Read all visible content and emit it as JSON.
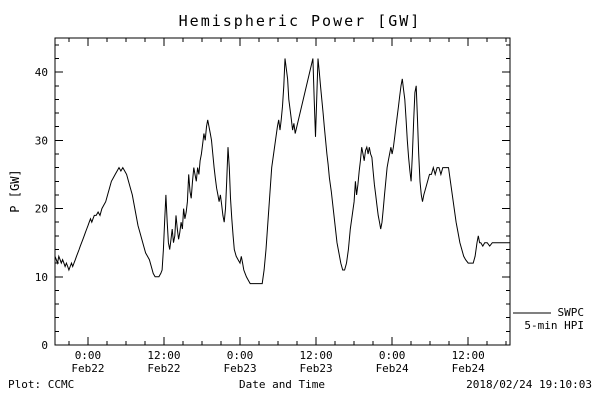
{
  "footer": {
    "left": "Plot: CCMC",
    "right": "2018/02/24 19:10:03"
  },
  "legend": {
    "line1": "SWPC",
    "line2": "5-min HPI"
  },
  "chart_data": {
    "type": "line",
    "title": "Hemispheric Power [GW]",
    "xlabel": "Date and Time",
    "ylabel": "P [GW]",
    "xlim": [
      -5.2,
      66.6
    ],
    "ylim": [
      0,
      45
    ],
    "grid": false,
    "legend_position": "right-outside",
    "line_color": "#000000",
    "y_ticks": [
      0,
      10,
      20,
      30,
      40
    ],
    "y_minor_step": 2,
    "x_minor_step": 3,
    "x_major_ticks": [
      {
        "t": 0,
        "time": "0:00",
        "date": "Feb22"
      },
      {
        "t": 12,
        "time": "12:00",
        "date": "Feb22"
      },
      {
        "t": 24,
        "time": "0:00",
        "date": "Feb23"
      },
      {
        "t": 36,
        "time": "12:00",
        "date": "Feb23"
      },
      {
        "t": 48,
        "time": "0:00",
        "date": "Feb24"
      },
      {
        "t": 60,
        "time": "12:00",
        "date": "Feb24"
      }
    ],
    "series": [
      {
        "name": "SWPC 5-min HPI",
        "color": "#000000",
        "points": [
          [
            -5.2,
            13
          ],
          [
            -5,
            12.5
          ],
          [
            -4.8,
            12
          ],
          [
            -4.6,
            13
          ],
          [
            -4.4,
            12.5
          ],
          [
            -4.2,
            12
          ],
          [
            -4,
            12.5
          ],
          [
            -3.8,
            12
          ],
          [
            -3.6,
            11.5
          ],
          [
            -3.4,
            12
          ],
          [
            -3.2,
            11.5
          ],
          [
            -3,
            11
          ],
          [
            -2.8,
            11.5
          ],
          [
            -2.6,
            12
          ],
          [
            -2.4,
            11.5
          ],
          [
            -2.2,
            12
          ],
          [
            -2,
            12.5
          ],
          [
            -1.8,
            13
          ],
          [
            -1.6,
            13.5
          ],
          [
            -1.4,
            14
          ],
          [
            -1.2,
            14.5
          ],
          [
            -1,
            15
          ],
          [
            -0.8,
            15.5
          ],
          [
            -0.6,
            16
          ],
          [
            -0.4,
            16.5
          ],
          [
            -0.2,
            17
          ],
          [
            0,
            17.5
          ],
          [
            0.2,
            18
          ],
          [
            0.4,
            18.5
          ],
          [
            0.6,
            18
          ],
          [
            0.8,
            18.5
          ],
          [
            1,
            19
          ],
          [
            1.3,
            19
          ],
          [
            1.6,
            19.5
          ],
          [
            1.9,
            19
          ],
          [
            2.2,
            20
          ],
          [
            2.5,
            20.5
          ],
          [
            2.8,
            21
          ],
          [
            3.1,
            22
          ],
          [
            3.4,
            23
          ],
          [
            3.7,
            24
          ],
          [
            4,
            24.5
          ],
          [
            4.3,
            25
          ],
          [
            4.6,
            25.5
          ],
          [
            4.9,
            26
          ],
          [
            5.2,
            25.5
          ],
          [
            5.5,
            26
          ],
          [
            5.8,
            25.5
          ],
          [
            6.1,
            25
          ],
          [
            6.4,
            24
          ],
          [
            6.7,
            23
          ],
          [
            7,
            22
          ],
          [
            7.3,
            20.5
          ],
          [
            7.6,
            19
          ],
          [
            7.9,
            17.5
          ],
          [
            8.2,
            16.5
          ],
          [
            8.5,
            15.5
          ],
          [
            8.8,
            14.5
          ],
          [
            9.1,
            13.5
          ],
          [
            9.4,
            13
          ],
          [
            9.7,
            12.5
          ],
          [
            10,
            11.5
          ],
          [
            10.3,
            10.5
          ],
          [
            10.6,
            10
          ],
          [
            10.9,
            10
          ],
          [
            11.2,
            10
          ],
          [
            11.5,
            10.5
          ],
          [
            11.7,
            11
          ],
          [
            11.9,
            14
          ],
          [
            12.1,
            18
          ],
          [
            12.3,
            22
          ],
          [
            12.5,
            18
          ],
          [
            12.7,
            15
          ],
          [
            12.9,
            14
          ],
          [
            13.1,
            15.5
          ],
          [
            13.3,
            17
          ],
          [
            13.5,
            15
          ],
          [
            13.7,
            16
          ],
          [
            13.9,
            19
          ],
          [
            14.1,
            17
          ],
          [
            14.3,
            15.5
          ],
          [
            14.5,
            16.5
          ],
          [
            14.7,
            18
          ],
          [
            14.9,
            17
          ],
          [
            15.1,
            20
          ],
          [
            15.3,
            18.5
          ],
          [
            15.5,
            19.5
          ],
          [
            15.7,
            21
          ],
          [
            15.9,
            25
          ],
          [
            16.1,
            22.5
          ],
          [
            16.3,
            21.5
          ],
          [
            16.5,
            24
          ],
          [
            16.7,
            26
          ],
          [
            16.9,
            25
          ],
          [
            17.1,
            24
          ],
          [
            17.3,
            26
          ],
          [
            17.5,
            25
          ],
          [
            17.7,
            27
          ],
          [
            17.9,
            28
          ],
          [
            18.1,
            29.5
          ],
          [
            18.3,
            31
          ],
          [
            18.5,
            30
          ],
          [
            18.7,
            32
          ],
          [
            18.9,
            33
          ],
          [
            19.1,
            32
          ],
          [
            19.3,
            31
          ],
          [
            19.5,
            30
          ],
          [
            19.7,
            28
          ],
          [
            19.9,
            26
          ],
          [
            20.1,
            24.5
          ],
          [
            20.3,
            23
          ],
          [
            20.5,
            22
          ],
          [
            20.7,
            21
          ],
          [
            20.9,
            22
          ],
          [
            21.1,
            20.5
          ],
          [
            21.3,
            19
          ],
          [
            21.5,
            18
          ],
          [
            21.7,
            20
          ],
          [
            21.9,
            24
          ],
          [
            22.1,
            29
          ],
          [
            22.3,
            26
          ],
          [
            22.5,
            21.5
          ],
          [
            22.7,
            18.5
          ],
          [
            22.9,
            16
          ],
          [
            23.1,
            14
          ],
          [
            23.4,
            13
          ],
          [
            23.7,
            12.5
          ],
          [
            24,
            12
          ],
          [
            24.2,
            13
          ],
          [
            24.4,
            12
          ],
          [
            24.6,
            11
          ],
          [
            24.8,
            10.5
          ],
          [
            25,
            10
          ],
          [
            25.3,
            9.5
          ],
          [
            25.6,
            9
          ],
          [
            26,
            9
          ],
          [
            26.4,
            9
          ],
          [
            26.8,
            9
          ],
          [
            27.2,
            9
          ],
          [
            27.5,
            9
          ],
          [
            27.8,
            11
          ],
          [
            28.1,
            14
          ],
          [
            28.4,
            18
          ],
          [
            28.7,
            22
          ],
          [
            29,
            26
          ],
          [
            29.3,
            28
          ],
          [
            29.6,
            30
          ],
          [
            29.9,
            32
          ],
          [
            30.1,
            33
          ],
          [
            30.3,
            31.5
          ],
          [
            30.5,
            33
          ],
          [
            30.7,
            35
          ],
          [
            30.9,
            38
          ],
          [
            31.1,
            42
          ],
          [
            31.3,
            40.5
          ],
          [
            31.5,
            39
          ],
          [
            31.7,
            36
          ],
          [
            31.9,
            34.5
          ],
          [
            32.1,
            33
          ],
          [
            32.3,
            31.5
          ],
          [
            32.5,
            32.5
          ],
          [
            32.7,
            31
          ],
          [
            35.5,
            42
          ],
          [
            35.7,
            36
          ],
          [
            35.9,
            30.5
          ],
          [
            36.1,
            36
          ],
          [
            36.3,
            42
          ],
          [
            36.5,
            40
          ],
          [
            36.7,
            38
          ],
          [
            36.9,
            36
          ],
          [
            37.1,
            34
          ],
          [
            37.3,
            32
          ],
          [
            37.5,
            30
          ],
          [
            37.7,
            28
          ],
          [
            37.9,
            26.5
          ],
          [
            38.1,
            24.5
          ],
          [
            38.4,
            22.5
          ],
          [
            38.7,
            20
          ],
          [
            39,
            17.5
          ],
          [
            39.3,
            15
          ],
          [
            39.6,
            13.5
          ],
          [
            39.9,
            12
          ],
          [
            40.2,
            11
          ],
          [
            40.5,
            11
          ],
          [
            40.8,
            12
          ],
          [
            41.1,
            14
          ],
          [
            41.4,
            17
          ],
          [
            41.7,
            19
          ],
          [
            42,
            21
          ],
          [
            42.2,
            24
          ],
          [
            42.4,
            22
          ],
          [
            42.6,
            23.5
          ],
          [
            42.8,
            25.5
          ],
          [
            43,
            27
          ],
          [
            43.2,
            29
          ],
          [
            43.4,
            28
          ],
          [
            43.6,
            27
          ],
          [
            43.8,
            28.5
          ],
          [
            44,
            29
          ],
          [
            44.2,
            28
          ],
          [
            44.4,
            29
          ],
          [
            44.6,
            28
          ],
          [
            44.8,
            27.5
          ],
          [
            45,
            25.5
          ],
          [
            45.2,
            23.5
          ],
          [
            45.4,
            22
          ],
          [
            45.6,
            20.5
          ],
          [
            45.8,
            19
          ],
          [
            46,
            18
          ],
          [
            46.2,
            17
          ],
          [
            46.4,
            18
          ],
          [
            46.6,
            20
          ],
          [
            46.8,
            22
          ],
          [
            47,
            24
          ],
          [
            47.2,
            26
          ],
          [
            47.4,
            27
          ],
          [
            47.6,
            28
          ],
          [
            47.8,
            29
          ],
          [
            48,
            28
          ],
          [
            48.2,
            29
          ],
          [
            48.4,
            30.5
          ],
          [
            48.6,
            32
          ],
          [
            48.8,
            33.5
          ],
          [
            49,
            35
          ],
          [
            49.2,
            36.5
          ],
          [
            49.4,
            38
          ],
          [
            49.6,
            39
          ],
          [
            49.8,
            37.5
          ],
          [
            50,
            36
          ],
          [
            50.2,
            33
          ],
          [
            50.4,
            30
          ],
          [
            50.6,
            27.5
          ],
          [
            50.8,
            25.5
          ],
          [
            51,
            24
          ],
          [
            51.2,
            28
          ],
          [
            51.4,
            33
          ],
          [
            51.6,
            37
          ],
          [
            51.8,
            38
          ],
          [
            52,
            33
          ],
          [
            52.2,
            28
          ],
          [
            52.4,
            24
          ],
          [
            52.6,
            22
          ],
          [
            52.8,
            21
          ],
          [
            53,
            22
          ],
          [
            53.3,
            23
          ],
          [
            53.6,
            24
          ],
          [
            53.9,
            25
          ],
          [
            54.2,
            25
          ],
          [
            54.5,
            26
          ],
          [
            54.8,
            25
          ],
          [
            55.1,
            26
          ],
          [
            55.4,
            26
          ],
          [
            55.7,
            25
          ],
          [
            56,
            26
          ],
          [
            56.3,
            26
          ],
          [
            56.6,
            26
          ],
          [
            56.9,
            26
          ],
          [
            57.2,
            24
          ],
          [
            57.5,
            22
          ],
          [
            57.8,
            20
          ],
          [
            58.1,
            18
          ],
          [
            58.4,
            16.5
          ],
          [
            58.7,
            15
          ],
          [
            59,
            14
          ],
          [
            59.3,
            13
          ],
          [
            59.6,
            12.5
          ],
          [
            60,
            12
          ],
          [
            60.4,
            12
          ],
          [
            60.8,
            12
          ],
          [
            61.1,
            13
          ],
          [
            61.4,
            15
          ],
          [
            61.6,
            16
          ],
          [
            61.8,
            15
          ],
          [
            62,
            15
          ],
          [
            62.3,
            14.5
          ],
          [
            62.6,
            15
          ],
          [
            63,
            15
          ],
          [
            63.4,
            14.5
          ],
          [
            63.8,
            15
          ],
          [
            64.2,
            15
          ],
          [
            64.6,
            15
          ],
          [
            65,
            15
          ],
          [
            65.4,
            15
          ],
          [
            65.8,
            15
          ],
          [
            66.2,
            15
          ],
          [
            66.6,
            15
          ]
        ]
      }
    ]
  }
}
